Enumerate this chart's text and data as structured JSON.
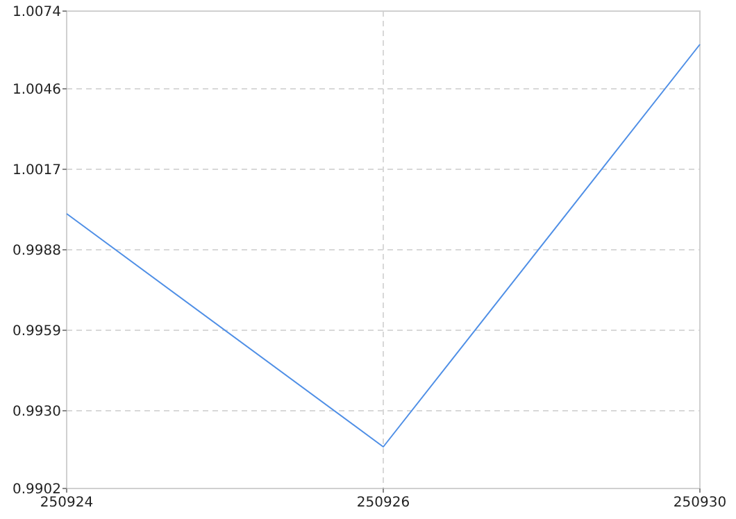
{
  "chart_data": {
    "type": "line",
    "categories": [
      "250924",
      "250926",
      "250930"
    ],
    "series": [
      {
        "color": "#4f8fe6",
        "values": [
          1.0001,
          0.9917,
          1.0062
        ]
      }
    ],
    "ylim": [
      0.9902,
      1.0074
    ],
    "yticks": [
      {
        "value": 0.9902,
        "label": "0.9902"
      },
      {
        "value": 0.993,
        "label": "0.9930"
      },
      {
        "value": 0.9959,
        "label": "0.9959"
      },
      {
        "value": 0.9988,
        "label": "0.9988"
      },
      {
        "value": 1.0017,
        "label": "1.0017"
      },
      {
        "value": 1.0046,
        "label": "1.0046"
      },
      {
        "value": 1.0074,
        "label": "1.0074"
      }
    ],
    "grid": true,
    "marker": "none",
    "line_style": "solid"
  }
}
